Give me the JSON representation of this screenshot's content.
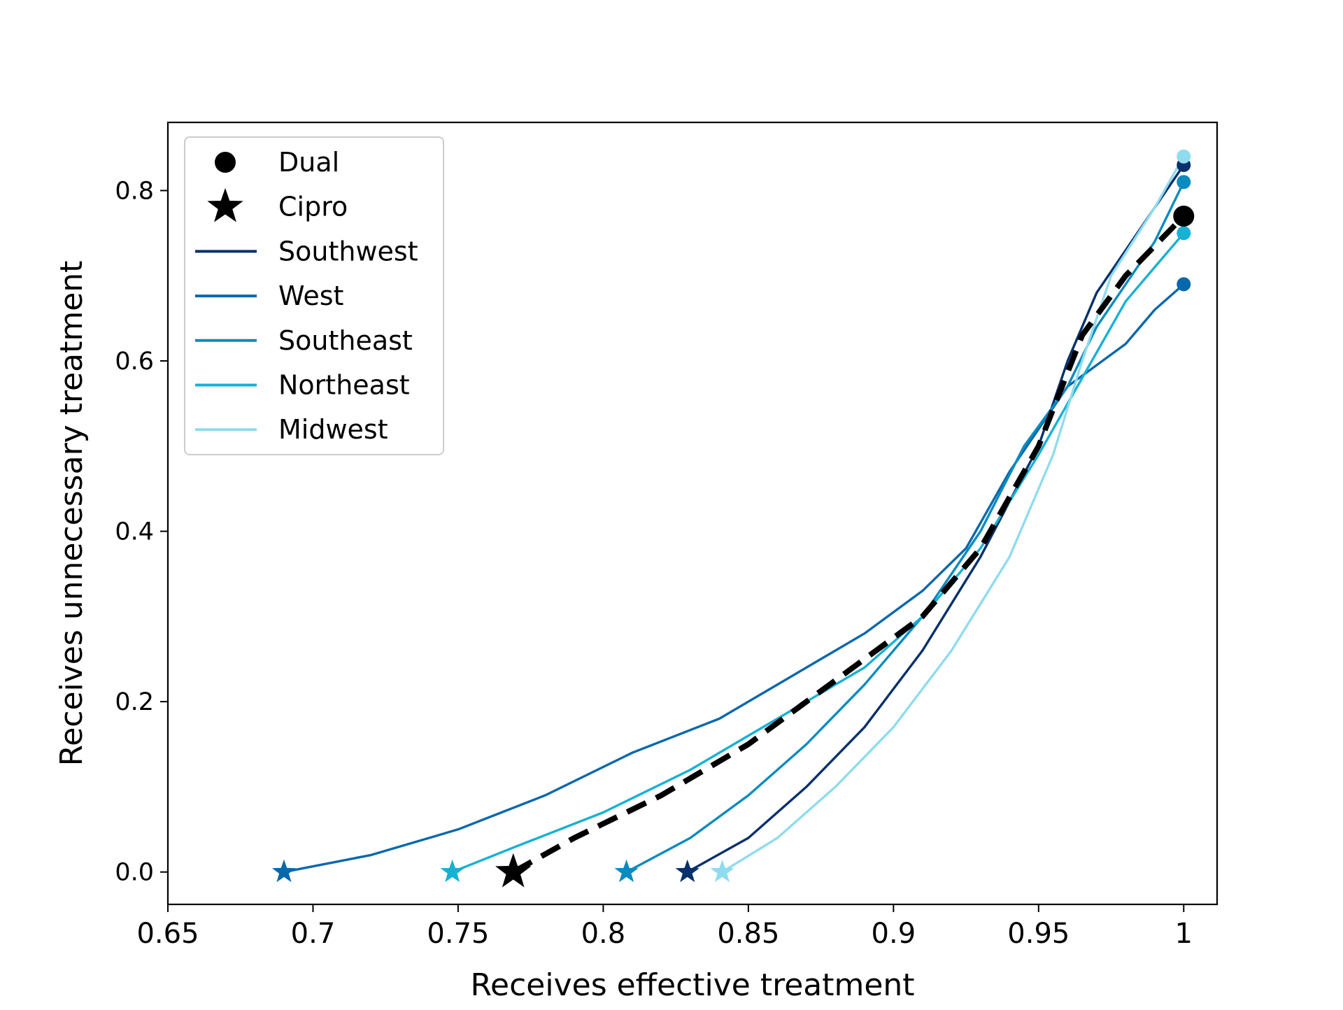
{
  "chart_data": {
    "type": "line",
    "title": "",
    "xlabel": "Receives effective treatment",
    "ylabel": "Receives unnecessary treatment",
    "xlim": [
      0.65,
      1.0115
    ],
    "ylim": [
      -0.038,
      0.88
    ],
    "xticks": [
      0.65,
      0.7,
      0.75,
      0.8,
      0.85,
      0.9,
      0.95,
      1.0
    ],
    "xtick_labels": [
      "0.65",
      "0.7",
      "0.75",
      "0.8",
      "0.85",
      "0.9",
      "0.95",
      "1"
    ],
    "yticks": [
      0.0,
      0.2,
      0.4,
      0.6,
      0.8
    ],
    "ytick_labels": [
      "0.0",
      "0.2",
      "0.4",
      "0.6",
      "0.8"
    ],
    "grid": false,
    "legend_position": "upper-left",
    "legend": [
      {
        "label": "Dual",
        "kind": "marker",
        "shape": "circle",
        "color": "#000000"
      },
      {
        "label": "Cipro",
        "kind": "marker",
        "shape": "star",
        "color": "#000000"
      },
      {
        "label": "Southwest",
        "kind": "line",
        "color": "#08306b"
      },
      {
        "label": "West",
        "kind": "line",
        "color": "#0868ac"
      },
      {
        "label": "Southeast",
        "kind": "line",
        "color": "#0a8bc0"
      },
      {
        "label": "Northeast",
        "kind": "line",
        "color": "#17b1d4"
      },
      {
        "label": "Midwest",
        "kind": "line",
        "color": "#8fdcee"
      }
    ],
    "series": [
      {
        "name": "Southwest",
        "color": "#08306b",
        "dashed": false,
        "x": [
          0.829,
          0.85,
          0.87,
          0.89,
          0.91,
          0.93,
          0.95,
          0.96,
          0.965,
          0.97,
          0.98,
          1.0
        ],
        "y": [
          0.0,
          0.04,
          0.1,
          0.17,
          0.26,
          0.37,
          0.5,
          0.6,
          0.64,
          0.68,
          0.73,
          0.83
        ],
        "start": {
          "x": 0.829,
          "y": 0.0
        },
        "end": {
          "x": 1.0,
          "y": 0.83
        }
      },
      {
        "name": "West",
        "color": "#0868ac",
        "dashed": false,
        "x": [
          0.69,
          0.72,
          0.75,
          0.78,
          0.81,
          0.84,
          0.87,
          0.89,
          0.91,
          0.925,
          0.94,
          0.96,
          0.98,
          0.99,
          1.0
        ],
        "y": [
          0.0,
          0.02,
          0.05,
          0.09,
          0.14,
          0.18,
          0.24,
          0.28,
          0.33,
          0.38,
          0.47,
          0.57,
          0.62,
          0.66,
          0.69
        ],
        "start": {
          "x": 0.69,
          "y": 0.0
        },
        "end": {
          "x": 1.0,
          "y": 0.69
        }
      },
      {
        "name": "Southeast",
        "color": "#0a8bc0",
        "dashed": false,
        "x": [
          0.808,
          0.83,
          0.85,
          0.87,
          0.89,
          0.91,
          0.93,
          0.945,
          0.96,
          0.97,
          0.98,
          0.99,
          1.0
        ],
        "y": [
          0.0,
          0.04,
          0.09,
          0.15,
          0.22,
          0.3,
          0.4,
          0.5,
          0.57,
          0.64,
          0.69,
          0.74,
          0.81
        ],
        "start": {
          "x": 0.808,
          "y": 0.0
        },
        "end": {
          "x": 1.0,
          "y": 0.81
        }
      },
      {
        "name": "Northeast",
        "color": "#17b1d4",
        "dashed": false,
        "x": [
          0.748,
          0.77,
          0.8,
          0.83,
          0.86,
          0.89,
          0.91,
          0.93,
          0.95,
          0.965,
          0.98,
          0.99,
          1.0
        ],
        "y": [
          0.0,
          0.03,
          0.07,
          0.12,
          0.18,
          0.24,
          0.3,
          0.38,
          0.49,
          0.58,
          0.67,
          0.71,
          0.75
        ],
        "start": {
          "x": 0.748,
          "y": 0.0
        },
        "end": {
          "x": 1.0,
          "y": 0.75
        }
      },
      {
        "name": "Midwest",
        "color": "#8fdcee",
        "dashed": false,
        "x": [
          0.841,
          0.86,
          0.88,
          0.9,
          0.92,
          0.94,
          0.955,
          0.965,
          0.975,
          0.99,
          1.0
        ],
        "y": [
          0.0,
          0.04,
          0.1,
          0.17,
          0.26,
          0.37,
          0.49,
          0.6,
          0.7,
          0.78,
          0.84
        ],
        "start": {
          "x": 0.841,
          "y": 0.0
        },
        "end": {
          "x": 1.0,
          "y": 0.84
        }
      },
      {
        "name": "",
        "color": "#000000",
        "dashed": true,
        "x": [
          0.769,
          0.79,
          0.82,
          0.85,
          0.87,
          0.89,
          0.91,
          0.93,
          0.95,
          0.965,
          0.98,
          1.0
        ],
        "y": [
          0.0,
          0.04,
          0.09,
          0.15,
          0.2,
          0.25,
          0.3,
          0.38,
          0.5,
          0.63,
          0.7,
          0.77
        ],
        "start": {
          "x": 0.769,
          "y": 0.0
        },
        "end": {
          "x": 1.0,
          "y": 0.77
        }
      }
    ]
  }
}
